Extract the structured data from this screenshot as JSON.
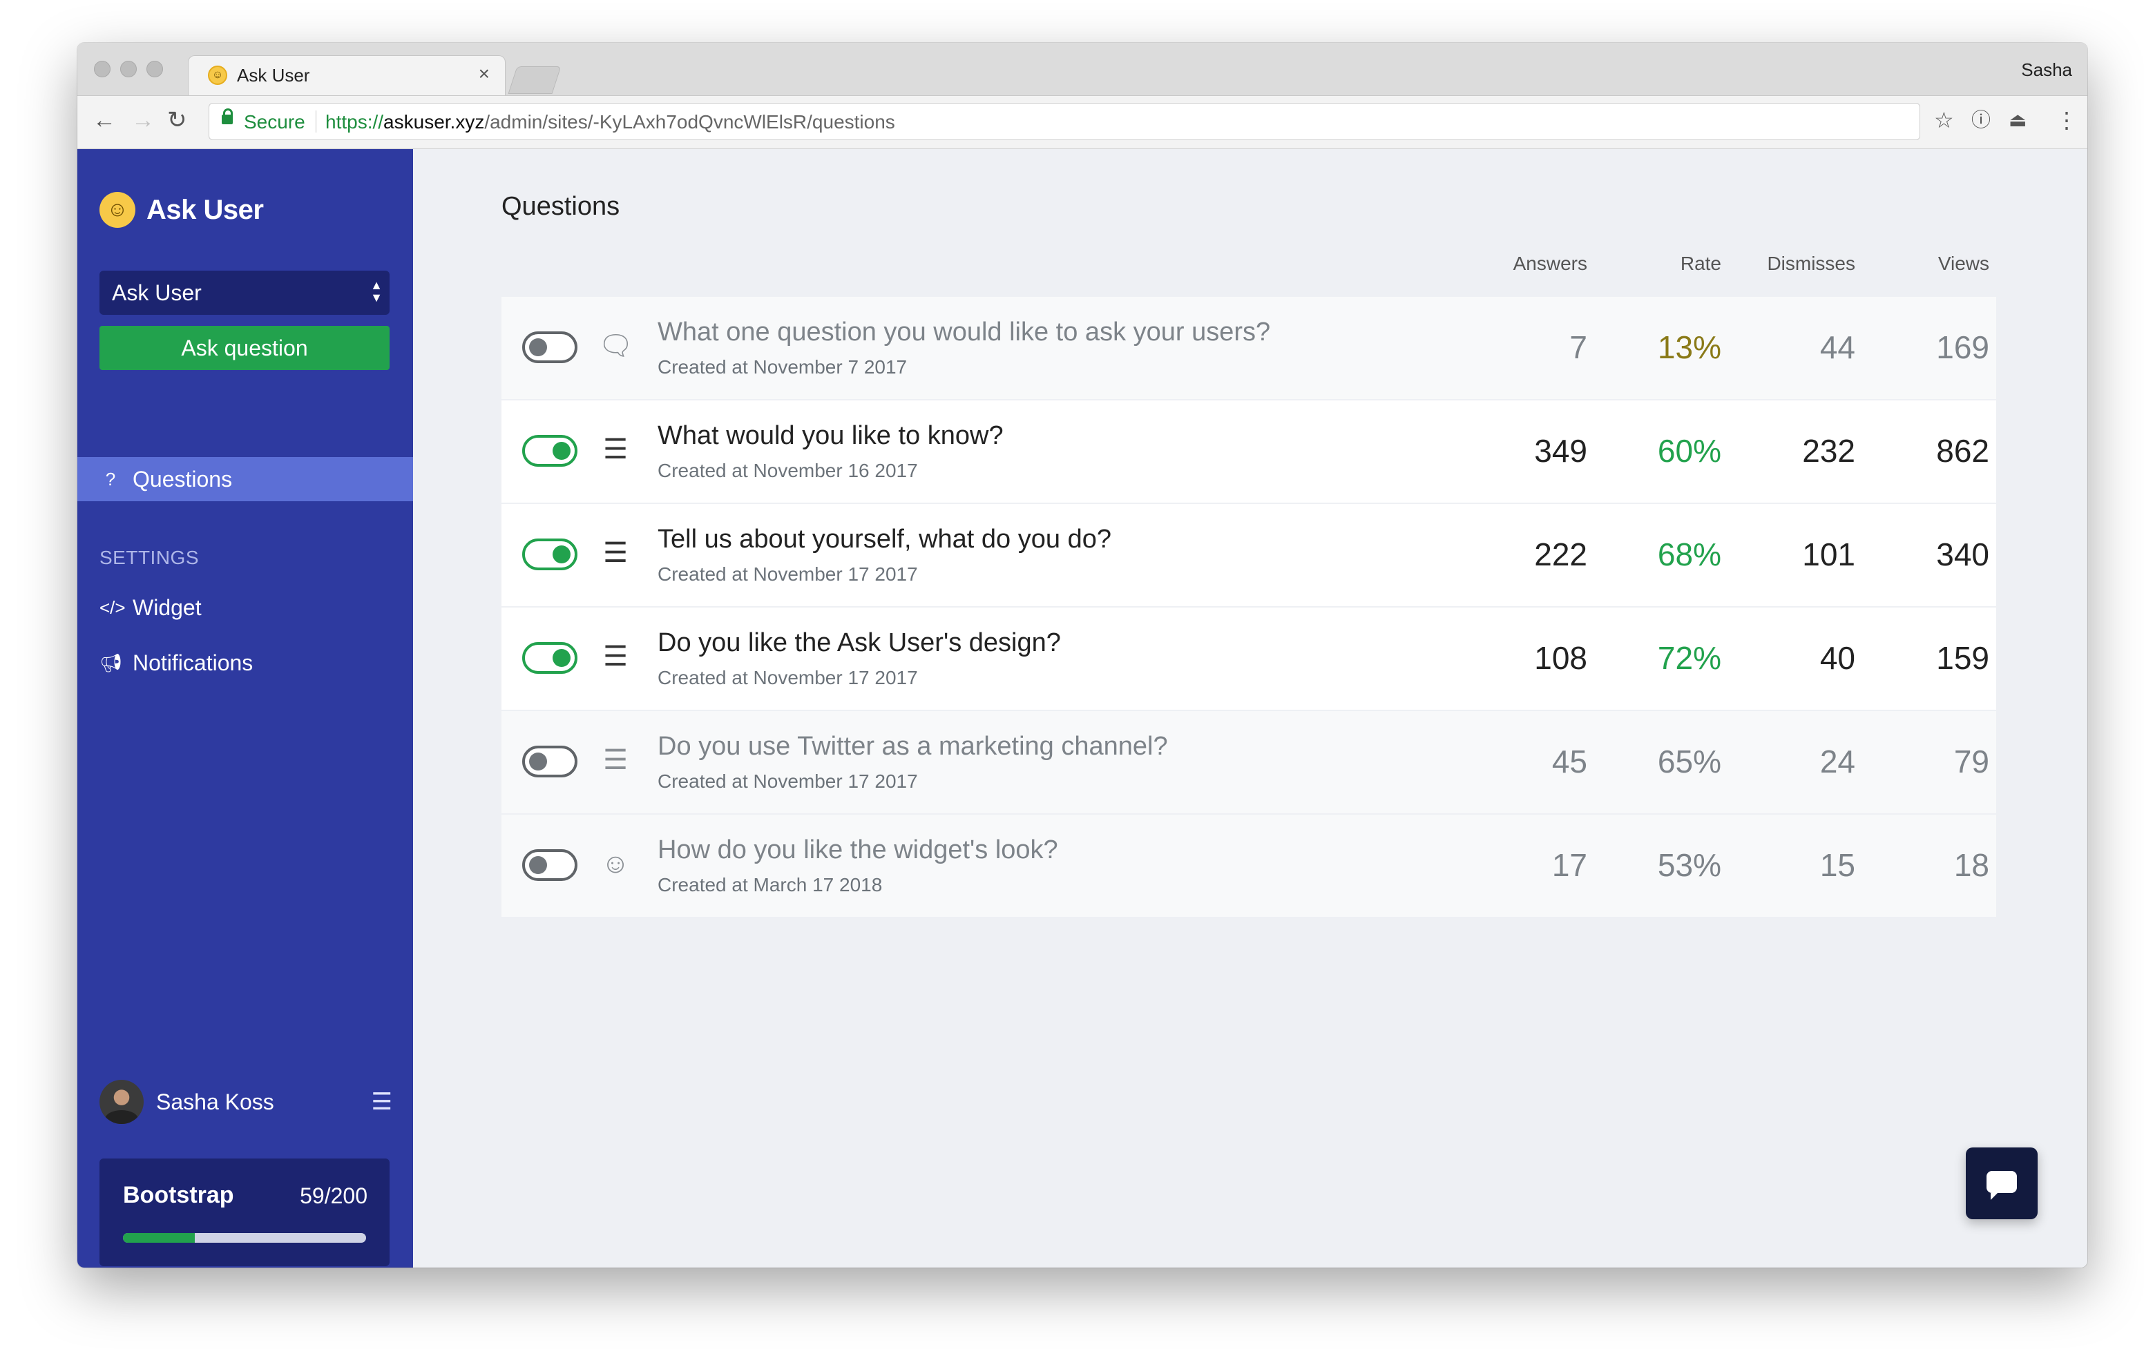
{
  "browser": {
    "tab_title": "Ask User",
    "tab_close": "×",
    "profile_name": "Sasha",
    "secure_label": "Secure",
    "url_scheme": "https://",
    "url_host": "askuser.xyz",
    "url_path": "/admin/sites/-KyLAxh7odQvncWlElsR/questions"
  },
  "sidebar": {
    "brand": "Ask User",
    "site_select": "Ask User",
    "ask_button": "Ask question",
    "nav_questions": "Questions",
    "settings_heading": "SETTINGS",
    "nav_widget": "Widget",
    "nav_notifications": "Notifications",
    "user_name": "Sasha Koss",
    "plan_name": "Bootstrap",
    "plan_usage": "59/200",
    "plan_used": 59,
    "plan_limit": 200
  },
  "main": {
    "title": "Questions",
    "columns": {
      "answers": "Answers",
      "rate": "Rate",
      "dismisses": "Dismisses",
      "views": "Views"
    },
    "questions": [
      {
        "title": "What one question you would like to ask your users?",
        "created": "Created at November 7 2017",
        "enabled": false,
        "icon": "speech-bubble-icon",
        "answers": "7",
        "rate": "13%",
        "dismisses": "44",
        "views": "169"
      },
      {
        "title": "What would you like to know?",
        "created": "Created at November 16 2017",
        "enabled": true,
        "icon": "list-icon",
        "answers": "349",
        "rate": "60%",
        "dismisses": "232",
        "views": "862"
      },
      {
        "title": "Tell us about yourself, what do you do?",
        "created": "Created at November 17 2017",
        "enabled": true,
        "icon": "list-icon",
        "answers": "222",
        "rate": "68%",
        "dismisses": "101",
        "views": "340"
      },
      {
        "title": "Do you like the Ask User's design?",
        "created": "Created at November 17 2017",
        "enabled": true,
        "icon": "list-icon",
        "answers": "108",
        "rate": "72%",
        "dismisses": "40",
        "views": "159"
      },
      {
        "title": "Do you use Twitter as a marketing channel?",
        "created": "Created at November 17 2017",
        "enabled": false,
        "icon": "list-icon",
        "answers": "45",
        "rate": "65%",
        "dismisses": "24",
        "views": "79"
      },
      {
        "title": "How do you like the widget's look?",
        "created": "Created at March 17 2018",
        "enabled": false,
        "icon": "smiley-icon",
        "answers": "17",
        "rate": "53%",
        "dismisses": "15",
        "views": "18"
      }
    ]
  },
  "colors": {
    "sidebar": "#2e3aa0",
    "sidebar_active": "#5c6fd6",
    "accent_green": "#22a24d",
    "rate_low": "#8a7a18",
    "chat_button": "#121a3e"
  }
}
